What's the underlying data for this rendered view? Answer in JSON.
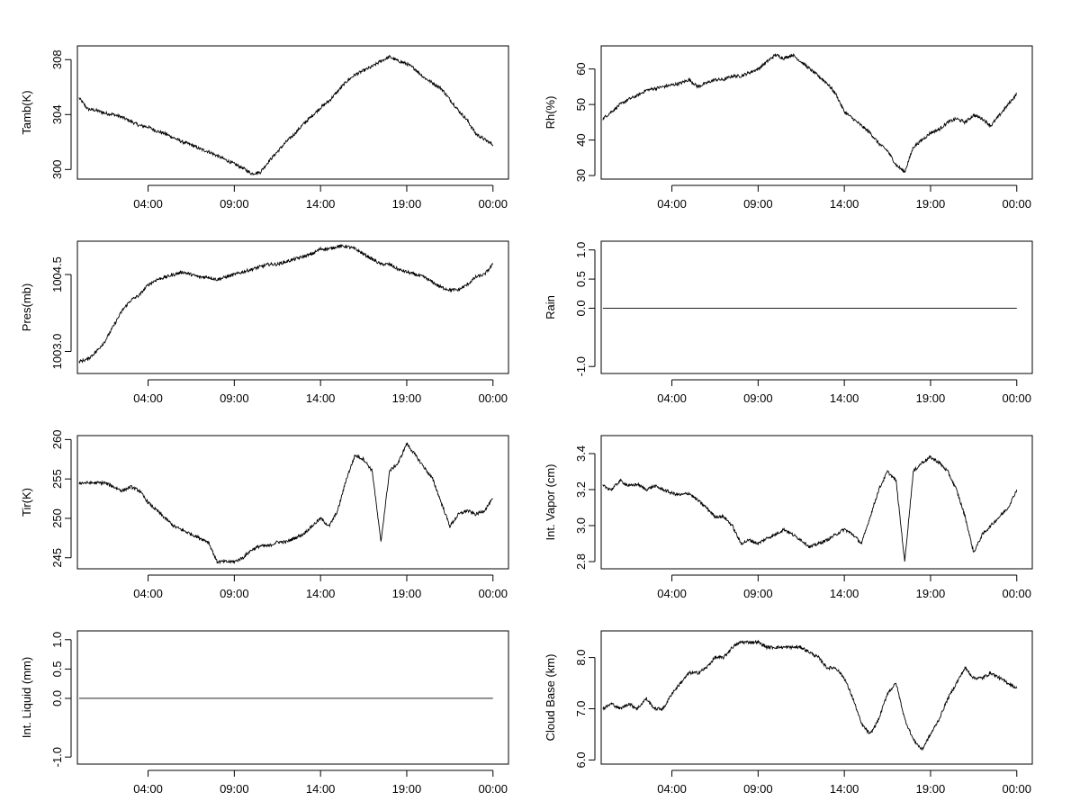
{
  "chart_data": [
    {
      "type": "line",
      "ylabel": "Tamb(K)",
      "xtick_labels": [
        "04:00",
        "09:00",
        "14:00",
        "19:00",
        "00:00"
      ],
      "xtick_hours": [
        4,
        9,
        14,
        19,
        24
      ],
      "xlim": [
        -0.1,
        24.9
      ],
      "ytick_labels": [
        "300",
        "304",
        "308"
      ],
      "ytick_values": [
        300,
        304,
        308
      ],
      "ylim": [
        299.3,
        309.0
      ],
      "series": [
        {
          "x": [
            0,
            0.5,
            1,
            1.5,
            2,
            2.5,
            3,
            3.5,
            4,
            4.5,
            5,
            5.5,
            6,
            6.5,
            7,
            7.5,
            8,
            8.5,
            9,
            9.5,
            10,
            10.5,
            11,
            11.5,
            12,
            12.5,
            13,
            13.5,
            14,
            14.5,
            15,
            15.5,
            16,
            16.5,
            17,
            17.5,
            18,
            18.5,
            19,
            19.5,
            20,
            20.5,
            21,
            21.5,
            22,
            22.5,
            23,
            23.5,
            24
          ],
          "y": [
            305.2,
            304.4,
            304.3,
            304.1,
            304.0,
            303.8,
            303.5,
            303.2,
            303.1,
            302.8,
            302.6,
            302.3,
            302.0,
            301.8,
            301.5,
            301.3,
            301.0,
            300.7,
            300.4,
            300.1,
            299.7,
            299.8,
            300.6,
            301.3,
            302.0,
            302.6,
            303.3,
            303.9,
            304.5,
            305.0,
            305.7,
            306.4,
            306.9,
            307.2,
            307.5,
            307.9,
            308.2,
            307.9,
            307.7,
            307.3,
            306.7,
            306.3,
            305.9,
            305.1,
            304.3,
            303.6,
            302.6,
            302.2,
            301.8
          ]
        }
      ]
    },
    {
      "type": "line",
      "ylabel": "Rh(%)",
      "xtick_labels": [
        "04:00",
        "09:00",
        "14:00",
        "19:00",
        "00:00"
      ],
      "xtick_hours": [
        4,
        9,
        14,
        19,
        24
      ],
      "xlim": [
        -0.1,
        24.9
      ],
      "ytick_labels": [
        "30",
        "40",
        "50",
        "60"
      ],
      "ytick_values": [
        30,
        40,
        50,
        60
      ],
      "ylim": [
        29.0,
        66.5
      ],
      "series": [
        {
          "x": [
            0,
            0.5,
            1,
            1.5,
            2,
            2.5,
            3,
            3.5,
            4,
            4.5,
            5,
            5.5,
            6,
            6.5,
            7,
            7.5,
            8,
            8.5,
            9,
            9.5,
            10,
            10.5,
            11,
            11.5,
            12,
            12.5,
            13,
            13.5,
            14,
            14.5,
            15,
            15.5,
            16,
            16.5,
            17,
            17.5,
            18,
            18.5,
            19,
            19.5,
            20,
            20.5,
            21,
            21.5,
            22,
            22.5,
            23,
            23.5,
            24
          ],
          "y": [
            46,
            48,
            50,
            51.5,
            52.5,
            54,
            54.5,
            55,
            55.5,
            56,
            57,
            55,
            56,
            57,
            57,
            58,
            58,
            59,
            60,
            62,
            64,
            63,
            64,
            62,
            60,
            58,
            56,
            53,
            48,
            46,
            44,
            42,
            39,
            37,
            33,
            31,
            38,
            40,
            42,
            43,
            45,
            46,
            45,
            47,
            46,
            44,
            47,
            50,
            53
          ]
        }
      ]
    },
    {
      "type": "line",
      "ylabel": "Pres(mb)",
      "xtick_labels": [
        "04:00",
        "09:00",
        "14:00",
        "19:00",
        "00:00"
      ],
      "xtick_hours": [
        4,
        9,
        14,
        19,
        24
      ],
      "xlim": [
        -0.1,
        24.9
      ],
      "ytick_labels": [
        "1003.0",
        "1004.5"
      ],
      "ytick_values": [
        1003.0,
        1004.5
      ],
      "ylim": [
        1002.57,
        1005.15
      ],
      "series": [
        {
          "x": [
            0,
            0.5,
            1,
            1.5,
            2,
            2.5,
            3,
            3.5,
            4,
            4.5,
            5,
            5.5,
            6,
            6.5,
            7,
            7.5,
            8,
            8.5,
            9,
            9.5,
            10,
            10.5,
            11,
            11.5,
            12,
            12.5,
            13,
            13.5,
            14,
            14.5,
            15,
            15.5,
            16,
            16.5,
            17,
            17.5,
            18,
            18.5,
            19,
            19.5,
            20,
            20.5,
            21,
            21.5,
            22,
            22.5,
            23,
            23.5,
            24
          ],
          "y": [
            1002.8,
            1002.85,
            1003.0,
            1003.2,
            1003.5,
            1003.8,
            1004.0,
            1004.1,
            1004.3,
            1004.4,
            1004.45,
            1004.5,
            1004.55,
            1004.5,
            1004.45,
            1004.45,
            1004.4,
            1004.45,
            1004.5,
            1004.55,
            1004.6,
            1004.65,
            1004.7,
            1004.7,
            1004.75,
            1004.8,
            1004.85,
            1004.9,
            1005.0,
            1005.0,
            1005.05,
            1005.05,
            1005.0,
            1004.9,
            1004.8,
            1004.7,
            1004.7,
            1004.6,
            1004.55,
            1004.5,
            1004.45,
            1004.35,
            1004.25,
            1004.2,
            1004.2,
            1004.3,
            1004.45,
            1004.5,
            1004.7
          ]
        }
      ]
    },
    {
      "type": "line",
      "ylabel": "Rain",
      "xtick_labels": [
        "04:00",
        "09:00",
        "14:00",
        "19:00",
        "00:00"
      ],
      "xtick_hours": [
        4,
        9,
        14,
        19,
        24
      ],
      "xlim": [
        -0.1,
        24.9
      ],
      "ytick_labels": [
        "-1.0",
        "0.0",
        "0.5",
        "1.0"
      ],
      "ytick_values": [
        -1.0,
        0.0,
        0.5,
        1.0
      ],
      "ylim": [
        -1.12,
        1.15
      ],
      "series": [
        {
          "x": [
            0,
            24
          ],
          "y": [
            0,
            0
          ]
        }
      ]
    },
    {
      "type": "line",
      "ylabel": "Tir(K)",
      "xtick_labels": [
        "04:00",
        "09:00",
        "14:00",
        "19:00",
        "00:00"
      ],
      "xtick_hours": [
        4,
        9,
        14,
        19,
        24
      ],
      "xlim": [
        -0.1,
        24.9
      ],
      "ytick_labels": [
        "245",
        "250",
        "255",
        "260"
      ],
      "ytick_values": [
        245,
        250,
        255,
        260
      ],
      "ylim": [
        243.6,
        260.5
      ],
      "series": [
        {
          "x": [
            0,
            0.5,
            1,
            1.5,
            2,
            2.5,
            3,
            3.5,
            4,
            4.5,
            5,
            5.5,
            6,
            6.5,
            7,
            7.5,
            8,
            8.5,
            9,
            9.5,
            10,
            10.5,
            11,
            11.5,
            12,
            12.5,
            13,
            13.5,
            14,
            14.5,
            15,
            15.5,
            16,
            16.5,
            17,
            17.5,
            18,
            18.5,
            19,
            19.5,
            20,
            20.5,
            21,
            21.5,
            22,
            22.5,
            23,
            23.5,
            24
          ],
          "y": [
            254.5,
            254.5,
            254.5,
            254.5,
            254.0,
            253.5,
            254.0,
            253.5,
            252.0,
            251.0,
            250.0,
            249.0,
            248.5,
            248.0,
            247.5,
            247.0,
            244.5,
            244.5,
            244.5,
            245.0,
            246.0,
            246.5,
            246.5,
            247.0,
            247.0,
            247.5,
            248.0,
            249.0,
            250.0,
            249.0,
            251.0,
            255.0,
            258.0,
            257.5,
            256.0,
            247.0,
            256.0,
            257.0,
            259.5,
            258.0,
            256.5,
            255.0,
            252.0,
            249.0,
            250.5,
            251.0,
            250.5,
            251.0,
            252.5
          ]
        }
      ]
    },
    {
      "type": "line",
      "ylabel": "Int. Vapor (cm)",
      "xtick_labels": [
        "04:00",
        "09:00",
        "14:00",
        "19:00",
        "00:00"
      ],
      "xtick_hours": [
        4,
        9,
        14,
        19,
        24
      ],
      "xlim": [
        -0.1,
        24.9
      ],
      "ytick_labels": [
        "2.8",
        "3.0",
        "3.2",
        "3.4"
      ],
      "ytick_values": [
        2.8,
        3.0,
        3.2,
        3.4
      ],
      "ylim": [
        2.76,
        3.5
      ],
      "series": [
        {
          "x": [
            0,
            0.5,
            1,
            1.5,
            2,
            2.5,
            3,
            3.5,
            4,
            4.5,
            5,
            5.5,
            6,
            6.5,
            7,
            7.5,
            8,
            8.5,
            9,
            9.5,
            10,
            10.5,
            11,
            11.5,
            12,
            12.5,
            13,
            13.5,
            14,
            14.5,
            15,
            15.5,
            16,
            16.5,
            17,
            17.5,
            18,
            18.5,
            19,
            19.5,
            20,
            20.5,
            21,
            21.5,
            22,
            22.5,
            23,
            23.5,
            24
          ],
          "y": [
            3.22,
            3.2,
            3.25,
            3.22,
            3.23,
            3.2,
            3.22,
            3.2,
            3.18,
            3.17,
            3.18,
            3.14,
            3.1,
            3.05,
            3.05,
            3.0,
            2.9,
            2.92,
            2.9,
            2.93,
            2.95,
            2.98,
            2.95,
            2.92,
            2.88,
            2.9,
            2.92,
            2.95,
            2.98,
            2.95,
            2.9,
            3.05,
            3.2,
            3.3,
            3.25,
            2.8,
            3.3,
            3.35,
            3.38,
            3.35,
            3.3,
            3.2,
            3.05,
            2.85,
            2.95,
            3.0,
            3.05,
            3.1,
            3.2
          ]
        }
      ]
    },
    {
      "type": "line",
      "ylabel": "Int. Liquid (mm)",
      "xtick_labels": [
        "04:00",
        "09:00",
        "14:00",
        "19:00",
        "00:00"
      ],
      "xtick_hours": [
        4,
        9,
        14,
        19,
        24
      ],
      "xlim": [
        -0.1,
        24.9
      ],
      "ytick_labels": [
        "-1.0",
        "0.0",
        "0.5",
        "1.0"
      ],
      "ytick_values": [
        -1.0,
        0.0,
        0.5,
        1.0
      ],
      "ylim": [
        -1.12,
        1.15
      ],
      "series": [
        {
          "x": [
            0,
            24
          ],
          "y": [
            0,
            0
          ]
        }
      ]
    },
    {
      "type": "line",
      "ylabel": "Cloud Base (km)",
      "xtick_labels": [
        "04:00",
        "09:00",
        "14:00",
        "19:00",
        "00:00"
      ],
      "xtick_hours": [
        4,
        9,
        14,
        19,
        24
      ],
      "xlim": [
        -0.1,
        24.9
      ],
      "ytick_labels": [
        "6.0",
        "7.0",
        "8.0"
      ],
      "ytick_values": [
        6.0,
        7.0,
        8.0
      ],
      "ylim": [
        5.92,
        8.52
      ],
      "series": [
        {
          "x": [
            0,
            0.5,
            1,
            1.5,
            2,
            2.5,
            3,
            3.5,
            4,
            4.5,
            5,
            5.5,
            6,
            6.5,
            7,
            7.5,
            8,
            8.5,
            9,
            9.5,
            10,
            10.5,
            11,
            11.5,
            12,
            12.5,
            13,
            13.5,
            14,
            14.5,
            15,
            15.5,
            16,
            16.5,
            17,
            17.5,
            18,
            18.5,
            19,
            19.5,
            20,
            20.5,
            21,
            21.5,
            22,
            22.5,
            23,
            23.5,
            24
          ],
          "y": [
            7.0,
            7.1,
            7.0,
            7.1,
            7.0,
            7.2,
            7.0,
            7.0,
            7.3,
            7.5,
            7.7,
            7.7,
            7.8,
            8.0,
            8.0,
            8.2,
            8.3,
            8.3,
            8.3,
            8.2,
            8.2,
            8.2,
            8.2,
            8.2,
            8.1,
            8.0,
            7.8,
            7.8,
            7.6,
            7.2,
            6.7,
            6.5,
            6.8,
            7.3,
            7.5,
            6.8,
            6.4,
            6.2,
            6.5,
            6.8,
            7.2,
            7.5,
            7.8,
            7.6,
            7.6,
            7.7,
            7.6,
            7.5,
            7.4
          ]
        }
      ]
    }
  ]
}
